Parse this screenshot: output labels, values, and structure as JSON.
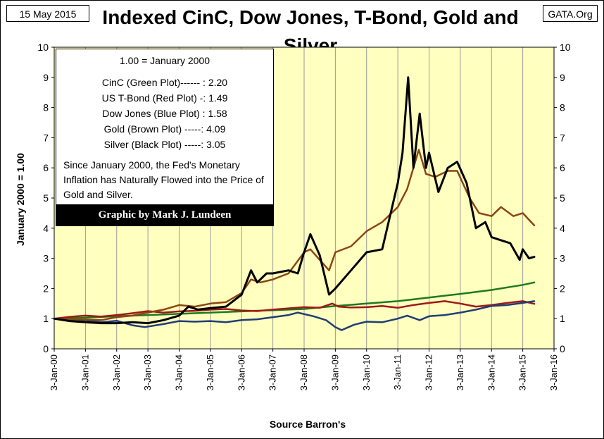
{
  "header": {
    "date": "15 May 2015",
    "title": "Indexed CinC, Dow Jones, T-Bond, Gold and Silver",
    "source": "GATA.Org"
  },
  "legend": {
    "heading": "1.00 = January 2000",
    "lines": [
      "CinC (Green Plot)------ : 2.20",
      "US T-Bond (Red Plot) -: 1.49",
      "Dow Jones (Blue Plot) : 1.58",
      "Gold (Brown Plot) -----: 4.09",
      "Silver (Black Plot) -----: 3.05"
    ],
    "note": "Since January 2000, the Fed's Monetary Inflation has Naturally Flowed into the Price of Gold and Silver.",
    "credit": "Graphic by Mark J. Lundeen"
  },
  "chart_data": {
    "type": "line",
    "title": "Indexed CinC, Dow Jones, T-Bond, Gold and Silver",
    "xlabel": "Source Barron's",
    "ylabel": "January 2000 = 1.00",
    "xlim": [
      2000,
      2016
    ],
    "ylim": [
      0,
      10
    ],
    "y_ticks": [
      0,
      1,
      2,
      3,
      4,
      5,
      6,
      7,
      8,
      9,
      10
    ],
    "x_tick_labels": [
      "3-Jan-00",
      "3-Jan-01",
      "3-Jan-02",
      "3-Jan-03",
      "3-Jan-04",
      "3-Jan-05",
      "3-Jan-06",
      "3-Jan-07",
      "3-Jan-08",
      "3-Jan-09",
      "3-Jan-10",
      "3-Jan-11",
      "3-Jan-12",
      "3-Jan-13",
      "3-Jan-14",
      "3-Jan-15",
      "3-Jan-16"
    ],
    "plot_background": "#FFFFC0",
    "grid": "vertical",
    "series": [
      {
        "name": "CinC",
        "color": "#1E7A1E",
        "final_value": 2.2,
        "x": [
          2000,
          2001,
          2002,
          2003,
          2004,
          2005,
          2006,
          2007,
          2008,
          2009,
          2010,
          2011,
          2012,
          2013,
          2014,
          2015,
          2015.37
        ],
        "y": [
          1.0,
          1.03,
          1.08,
          1.12,
          1.16,
          1.2,
          1.24,
          1.28,
          1.32,
          1.42,
          1.5,
          1.58,
          1.7,
          1.82,
          1.95,
          2.12,
          2.2
        ]
      },
      {
        "name": "US T-Bond",
        "color": "#A01818",
        "final_value": 1.49,
        "x": [
          2000,
          2000.5,
          2001,
          2001.5,
          2002,
          2002.5,
          2003,
          2003.5,
          2004,
          2004.5,
          2005,
          2005.5,
          2006,
          2006.5,
          2007,
          2007.5,
          2008,
          2008.5,
          2008.9,
          2009.1,
          2009.5,
          2010,
          2010.5,
          2011,
          2011.5,
          2012,
          2012.5,
          2013,
          2013.5,
          2014,
          2014.5,
          2015,
          2015.37
        ],
        "y": [
          1.0,
          1.06,
          1.1,
          1.07,
          1.12,
          1.18,
          1.25,
          1.2,
          1.24,
          1.26,
          1.3,
          1.32,
          1.27,
          1.25,
          1.3,
          1.34,
          1.38,
          1.36,
          1.5,
          1.4,
          1.37,
          1.38,
          1.42,
          1.36,
          1.45,
          1.52,
          1.58,
          1.5,
          1.4,
          1.45,
          1.52,
          1.58,
          1.49
        ]
      },
      {
        "name": "Dow Jones",
        "color": "#1F3D75",
        "final_value": 1.58,
        "x": [
          2000,
          2000.5,
          2001,
          2001.5,
          2002,
          2002.5,
          2002.9,
          2003.5,
          2004,
          2004.5,
          2005,
          2005.5,
          2006,
          2006.5,
          2007,
          2007.5,
          2007.8,
          2008.3,
          2008.7,
          2009.0,
          2009.2,
          2009.6,
          2010,
          2010.5,
          2011,
          2011.3,
          2011.7,
          2012,
          2012.5,
          2013,
          2013.5,
          2014,
          2014.5,
          2015,
          2015.37
        ],
        "y": [
          1.0,
          0.93,
          0.95,
          0.88,
          0.93,
          0.78,
          0.72,
          0.82,
          0.92,
          0.9,
          0.92,
          0.88,
          0.95,
          0.98,
          1.05,
          1.12,
          1.2,
          1.08,
          0.95,
          0.72,
          0.62,
          0.8,
          0.9,
          0.88,
          1.0,
          1.1,
          0.95,
          1.08,
          1.12,
          1.2,
          1.3,
          1.42,
          1.45,
          1.52,
          1.58
        ]
      },
      {
        "name": "Gold",
        "color": "#8B4513",
        "final_value": 4.09,
        "x": [
          2000,
          2000.5,
          2001,
          2001.5,
          2002,
          2002.5,
          2003,
          2003.5,
          2004,
          2004.5,
          2005,
          2005.5,
          2006,
          2006.3,
          2006.6,
          2007,
          2007.5,
          2008,
          2008.2,
          2008.8,
          2009,
          2009.5,
          2010,
          2010.5,
          2011,
          2011.3,
          2011.67,
          2011.9,
          2012.2,
          2012.6,
          2012.9,
          2013.3,
          2013.6,
          2014,
          2014.3,
          2014.7,
          2015,
          2015.37
        ],
        "y": [
          1.0,
          0.97,
          0.97,
          0.95,
          1.05,
          1.1,
          1.2,
          1.3,
          1.45,
          1.4,
          1.5,
          1.55,
          1.85,
          2.3,
          2.2,
          2.3,
          2.5,
          3.2,
          3.3,
          2.6,
          3.2,
          3.4,
          3.9,
          4.2,
          4.7,
          5.3,
          6.6,
          5.8,
          5.7,
          5.9,
          5.9,
          5.0,
          4.5,
          4.4,
          4.7,
          4.4,
          4.5,
          4.09
        ]
      },
      {
        "name": "Silver",
        "color": "#000000",
        "final_value": 3.05,
        "x": [
          2000,
          2000.5,
          2001,
          2001.5,
          2002,
          2002.5,
          2003,
          2003.5,
          2004,
          2004.3,
          2004.6,
          2005,
          2005.5,
          2006,
          2006.3,
          2006.5,
          2006.8,
          2007,
          2007.5,
          2007.8,
          2008,
          2008.2,
          2008.5,
          2008.8,
          2009,
          2009.5,
          2010,
          2010.5,
          2011,
          2011.15,
          2011.33,
          2011.5,
          2011.7,
          2011.9,
          2012,
          2012.3,
          2012.6,
          2012.9,
          2013.2,
          2013.5,
          2013.8,
          2014,
          2014.3,
          2014.6,
          2014.9,
          2015,
          2015.2,
          2015.37
        ],
        "y": [
          1.0,
          0.92,
          0.88,
          0.85,
          0.85,
          0.88,
          0.85,
          0.95,
          1.1,
          1.4,
          1.3,
          1.35,
          1.4,
          1.8,
          2.6,
          2.2,
          2.5,
          2.5,
          2.6,
          2.5,
          3.2,
          3.8,
          3.1,
          1.8,
          2.0,
          2.6,
          3.2,
          3.3,
          5.5,
          6.5,
          9.0,
          6.0,
          7.8,
          6.0,
          6.5,
          5.2,
          6.0,
          6.2,
          5.5,
          4.0,
          4.2,
          3.7,
          3.6,
          3.5,
          2.95,
          3.3,
          3.0,
          3.05
        ]
      }
    ]
  }
}
